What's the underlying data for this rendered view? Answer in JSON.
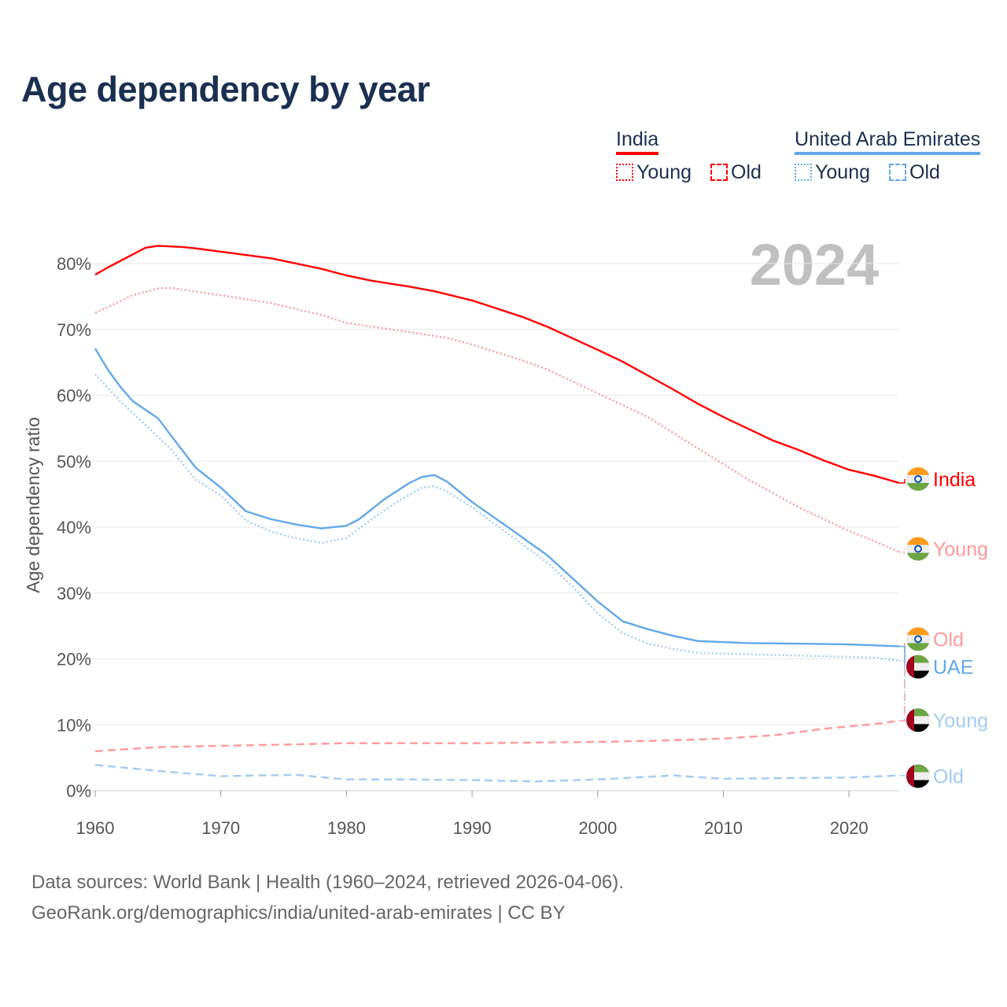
{
  "title": "Age dependency by year",
  "legend": {
    "groups": [
      {
        "name": "India",
        "color": "#ff0000",
        "items": [
          {
            "label": "Young",
            "style": "dotted"
          },
          {
            "label": "Old",
            "style": "dashed"
          }
        ]
      },
      {
        "name": "United Arab Emirates",
        "color": "#62a8ea",
        "items": [
          {
            "label": "Young",
            "style": "dotted"
          },
          {
            "label": "Old",
            "style": "dashed"
          }
        ]
      }
    ]
  },
  "footer": {
    "line1": "Data sources: World Bank | Health (1960–2024, retrieved 2026-04-06).",
    "line2": "GeoRank.org/demographics/india/united-arab-emirates | CC BY"
  },
  "chart_data": {
    "type": "line",
    "title": "Age dependency by year",
    "year_watermark": "2024",
    "xlabel": "",
    "ylabel": "Age dependency ratio",
    "xlim": [
      1960,
      2024
    ],
    "ylim": [
      0,
      85
    ],
    "xticks": [
      "1960",
      "1970",
      "1980",
      "1990",
      "2000",
      "2010",
      "2020"
    ],
    "yticks": [
      "0%",
      "10%",
      "20%",
      "30%",
      "40%",
      "50%",
      "60%",
      "70%",
      "80%"
    ],
    "series": [
      {
        "name": "India",
        "end_label": "India",
        "flag": "india",
        "color": "#ff0000",
        "dash": "solid",
        "points": [
          [
            1960,
            78.3
          ],
          [
            1961,
            79.4
          ],
          [
            1963,
            81.4
          ],
          [
            1964,
            82.4
          ],
          [
            1965,
            82.7
          ],
          [
            1967,
            82.5
          ],
          [
            1968,
            82.3
          ],
          [
            1970,
            81.8
          ],
          [
            1974,
            80.8
          ],
          [
            1978,
            79.2
          ],
          [
            1980,
            78.2
          ],
          [
            1982,
            77.4
          ],
          [
            1985,
            76.5
          ],
          [
            1987,
            75.8
          ],
          [
            1990,
            74.4
          ],
          [
            1994,
            71.9
          ],
          [
            1996,
            70.4
          ],
          [
            2000,
            66.9
          ],
          [
            2002,
            65.1
          ],
          [
            2004,
            63.0
          ],
          [
            2006,
            60.9
          ],
          [
            2008,
            58.7
          ],
          [
            2010,
            56.7
          ],
          [
            2012,
            54.9
          ],
          [
            2014,
            53.1
          ],
          [
            2016,
            51.7
          ],
          [
            2018,
            50.1
          ],
          [
            2020,
            48.7
          ],
          [
            2022,
            47.8
          ],
          [
            2024,
            46.7
          ]
        ]
      },
      {
        "name": "India Young",
        "end_label": "Young",
        "flag": "india",
        "color": "#ff9999",
        "dash": "dotted",
        "points": [
          [
            1960,
            72.5
          ],
          [
            1963,
            75.2
          ],
          [
            1965,
            76.2
          ],
          [
            1966,
            76.3
          ],
          [
            1970,
            75.2
          ],
          [
            1974,
            74.0
          ],
          [
            1978,
            72.2
          ],
          [
            1980,
            71.0
          ],
          [
            1985,
            69.6
          ],
          [
            1988,
            68.7
          ],
          [
            1990,
            67.7
          ],
          [
            1994,
            65.3
          ],
          [
            1996,
            63.9
          ],
          [
            2000,
            60.3
          ],
          [
            2004,
            56.7
          ],
          [
            2008,
            51.9
          ],
          [
            2012,
            47.2
          ],
          [
            2016,
            43.0
          ],
          [
            2018,
            41.2
          ],
          [
            2020,
            39.4
          ],
          [
            2022,
            37.9
          ],
          [
            2024,
            36.2
          ]
        ]
      },
      {
        "name": "India Old",
        "end_label": "Old",
        "flag": "india",
        "color": "#ff9999",
        "dash": "dashed",
        "points": [
          [
            1960,
            6.0
          ],
          [
            1965,
            6.6
          ],
          [
            1970,
            6.8
          ],
          [
            1975,
            7.0
          ],
          [
            1980,
            7.2
          ],
          [
            1990,
            7.2
          ],
          [
            2000,
            7.4
          ],
          [
            2005,
            7.6
          ],
          [
            2010,
            7.9
          ],
          [
            2014,
            8.4
          ],
          [
            2018,
            9.4
          ],
          [
            2022,
            10.1
          ],
          [
            2024,
            10.6
          ]
        ]
      },
      {
        "name": "UAE",
        "end_label": "UAE",
        "flag": "uae",
        "color": "#62a8ea",
        "dash": "solid",
        "points": [
          [
            1960,
            67.1
          ],
          [
            1961,
            63.9
          ],
          [
            1962,
            61.3
          ],
          [
            1963,
            59.1
          ],
          [
            1965,
            56.5
          ],
          [
            1966,
            54.0
          ],
          [
            1968,
            49.0
          ],
          [
            1970,
            46.0
          ],
          [
            1972,
            42.4
          ],
          [
            1974,
            41.2
          ],
          [
            1976,
            40.4
          ],
          [
            1978,
            39.8
          ],
          [
            1980,
            40.2
          ],
          [
            1981,
            41.2
          ],
          [
            1983,
            44.2
          ],
          [
            1985,
            46.7
          ],
          [
            1986,
            47.6
          ],
          [
            1987,
            47.9
          ],
          [
            1988,
            46.9
          ],
          [
            1990,
            43.8
          ],
          [
            1993,
            39.8
          ],
          [
            1996,
            35.7
          ],
          [
            1998,
            32.2
          ],
          [
            2000,
            28.7
          ],
          [
            2002,
            25.7
          ],
          [
            2004,
            24.5
          ],
          [
            2006,
            23.5
          ],
          [
            2008,
            22.7
          ],
          [
            2012,
            22.4
          ],
          [
            2016,
            22.3
          ],
          [
            2020,
            22.2
          ],
          [
            2024,
            21.9
          ]
        ]
      },
      {
        "name": "UAE Young",
        "end_label": "Young",
        "flag": "uae",
        "color": "#a3cbf3",
        "dash": "dotted",
        "points": [
          [
            1960,
            63.2
          ],
          [
            1962,
            59.1
          ],
          [
            1964,
            55.5
          ],
          [
            1966,
            51.9
          ],
          [
            1968,
            47.2
          ],
          [
            1970,
            44.8
          ],
          [
            1972,
            41.0
          ],
          [
            1974,
            39.3
          ],
          [
            1976,
            38.3
          ],
          [
            1978,
            37.6
          ],
          [
            1980,
            38.3
          ],
          [
            1982,
            41.2
          ],
          [
            1984,
            43.8
          ],
          [
            1986,
            46.0
          ],
          [
            1987,
            46.2
          ],
          [
            1988,
            45.4
          ],
          [
            1990,
            43.0
          ],
          [
            1993,
            38.8
          ],
          [
            1996,
            34.6
          ],
          [
            1998,
            31.0
          ],
          [
            2000,
            26.9
          ],
          [
            2002,
            23.9
          ],
          [
            2004,
            22.3
          ],
          [
            2006,
            21.5
          ],
          [
            2008,
            20.9
          ],
          [
            2012,
            20.7
          ],
          [
            2016,
            20.5
          ],
          [
            2020,
            20.3
          ],
          [
            2022,
            20.2
          ],
          [
            2024,
            19.7
          ]
        ]
      },
      {
        "name": "UAE Old",
        "end_label": "Old",
        "flag": "uae",
        "color": "#a3cbf3",
        "dash": "dashed",
        "points": [
          [
            1960,
            3.9
          ],
          [
            1965,
            3.0
          ],
          [
            1970,
            2.2
          ],
          [
            1973,
            2.3
          ],
          [
            1976,
            2.4
          ],
          [
            1980,
            1.7
          ],
          [
            1985,
            1.7
          ],
          [
            1990,
            1.6
          ],
          [
            1995,
            1.4
          ],
          [
            2000,
            1.7
          ],
          [
            2006,
            2.3
          ],
          [
            2010,
            1.8
          ],
          [
            2015,
            1.9
          ],
          [
            2020,
            2.0
          ],
          [
            2024,
            2.3
          ]
        ]
      }
    ],
    "end_label_values": [
      47.3,
      36.7,
      23.0,
      18.8,
      10.7,
      2.2
    ],
    "grid": true
  }
}
